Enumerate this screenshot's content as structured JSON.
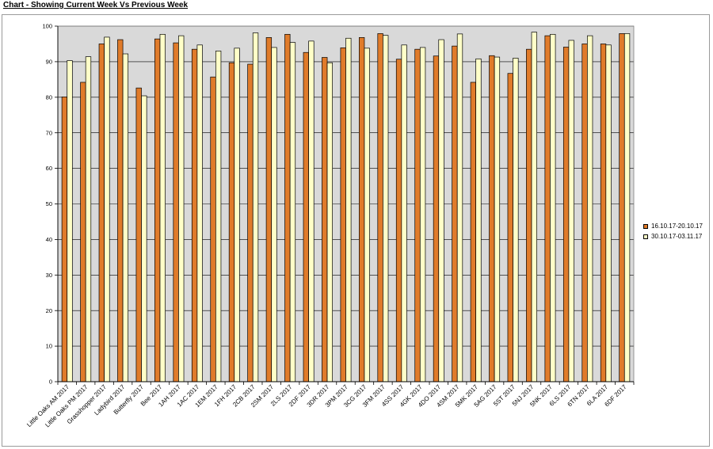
{
  "page": {
    "title": "Chart - Showing Current Week Vs Previous Week"
  },
  "colors": {
    "series1": "#E07B2A",
    "series2": "#FFFFC8",
    "plot_bg": "#D9D9D9",
    "border": "#000000"
  },
  "chart_data": {
    "type": "bar",
    "title": "",
    "xlabel": "",
    "ylabel": "",
    "ylim": [
      0,
      100
    ],
    "yticks": [
      0,
      10,
      20,
      30,
      40,
      50,
      60,
      70,
      80,
      90,
      100
    ],
    "grid": true,
    "legend": "right",
    "categories": [
      "Little Oaks AM 2017",
      "Little Oaks PM 2017",
      "Grasshopper 2017",
      "Ladybird 2017",
      "Butterfly 2017",
      "Bee 2017",
      "1AH 2017",
      "1AC 2017",
      "1EM 2017",
      "1FH 2017",
      "2CB 2017",
      "2SM 2017",
      "2LS 2017",
      "2DF 2017",
      "3DR 2017",
      "3PM 2017",
      "3CG 2017",
      "3FM 2017",
      "4SS 2017",
      "4GK 2017",
      "4DO 2017",
      "4SM 2017",
      "5MK 2017",
      "5AG 2017",
      "5ST 2017",
      "5NJ 2017",
      "5NK 2017",
      "6LS 2017",
      "6TN 2017",
      "6LA 2017",
      "6DF 2017"
    ],
    "series": [
      {
        "name": "16.10.17-20.10.17",
        "values": [
          80.1,
          84.2,
          95.0,
          96.2,
          82.6,
          96.4,
          95.3,
          93.5,
          85.7,
          89.7,
          89.3,
          96.8,
          97.7,
          92.6,
          91.2,
          93.9,
          96.8,
          97.9,
          90.7,
          93.5,
          91.6,
          94.4,
          84.2,
          91.7,
          86.7,
          93.5,
          97.3,
          94.1,
          95.0,
          95.0,
          97.9
        ]
      },
      {
        "name": "30.10.17-03.11.17",
        "values": [
          90.3,
          91.4,
          96.9,
          92.2,
          80.4,
          97.7,
          97.3,
          94.7,
          93.0,
          93.8,
          98.1,
          94.0,
          95.4,
          95.8,
          89.7,
          96.6,
          93.8,
          97.4,
          94.7,
          94.0,
          96.2,
          97.8,
          90.8,
          91.3,
          91.0,
          98.3,
          97.7,
          96.0,
          97.3,
          94.7,
          97.9
        ]
      }
    ]
  }
}
